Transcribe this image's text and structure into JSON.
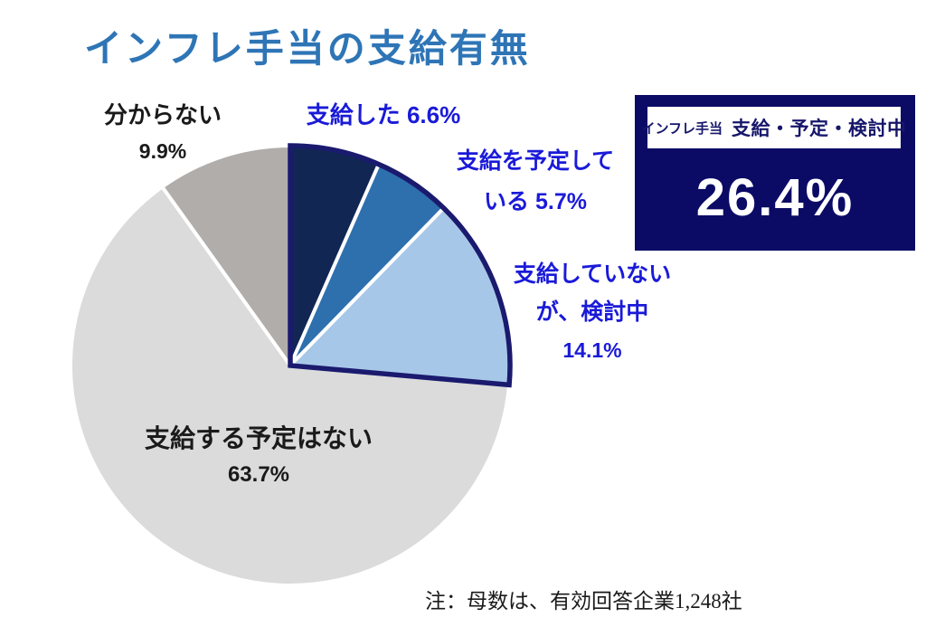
{
  "title": "インフレ手当の支給有無",
  "note": "注：母数は、有効回答企業1,248社",
  "colors": {
    "title_accent": "#2E75B6",
    "blue_label": "#1A1AD9",
    "black_label": "#1A1A1A",
    "highlight_outline": "#1A1A6E",
    "summary_bg": "#0B0B66",
    "summary_text": "#16166B"
  },
  "summary_box": {
    "tag": "インフレ手当",
    "heading": "支給・予定・検討中",
    "value": "26.4%",
    "bg_color": "#0B0B66",
    "text_color": "#16166B"
  },
  "chart_data": {
    "type": "pie",
    "title": "インフレ手当の支給有無",
    "start_angle": "top",
    "direction": "clockwise",
    "unit": "%",
    "slices": [
      {
        "label": "支給した",
        "value": 6.6,
        "color": "#122654",
        "label_color": "#1A1AD9",
        "label_lines": [
          "支給した 6.6%"
        ]
      },
      {
        "label": "支給を予定している",
        "value": 5.7,
        "color": "#2E6FAE",
        "label_color": "#1A1AD9",
        "label_lines": [
          "支給を予定して",
          "いる 5.7%"
        ]
      },
      {
        "label": "支給していないが、検討中",
        "value": 14.1,
        "color": "#A7C7E8",
        "label_color": "#1A1AD9",
        "label_lines": [
          "支給していない",
          "が、検討中",
          "14.1%"
        ]
      },
      {
        "label": "支給する予定はない",
        "value": 63.7,
        "color": "#DBDBDB",
        "label_color": "#1A1A1A",
        "label_lines": [
          "支給する予定はない",
          "63.7%"
        ]
      },
      {
        "label": "分からない",
        "value": 9.9,
        "color": "#B0ADAB",
        "label_color": "#1A1A1A",
        "label_lines": [
          "分からない",
          "9.9%"
        ]
      }
    ],
    "highlight_group": {
      "slice_indexes": [
        0,
        1,
        2
      ],
      "outline_color": "#1A1A6E",
      "group_label": "支給・予定・検討中",
      "group_total": "26.4%"
    },
    "annotations": [
      "注：母数は、有効回答企業1,248社"
    ]
  }
}
